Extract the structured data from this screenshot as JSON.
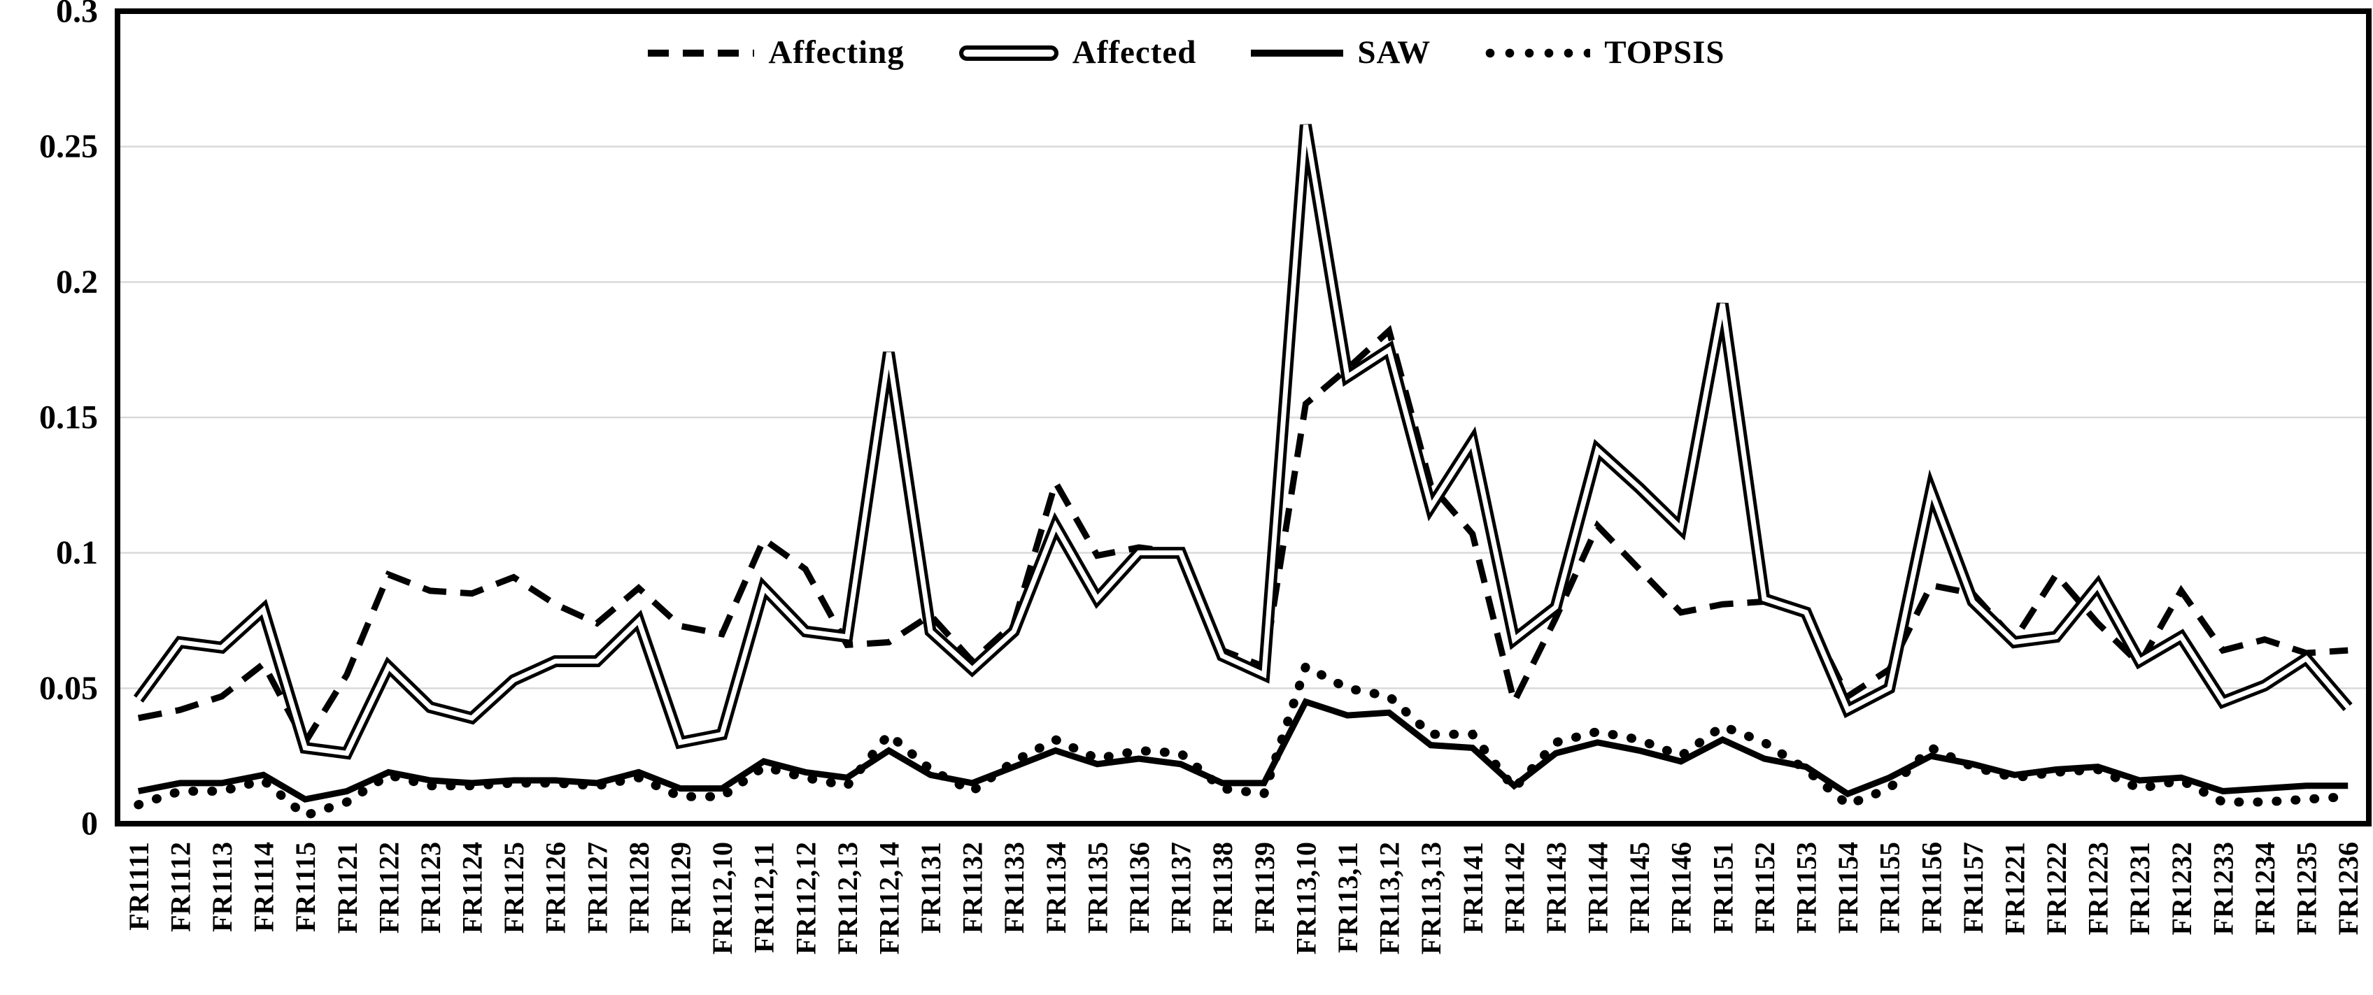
{
  "colors": {
    "line": "#000000",
    "grid": "#d9d9d9",
    "background": "#ffffff",
    "frame": "#000000"
  },
  "chart_data": {
    "type": "line",
    "title": "",
    "xlabel": "",
    "ylabel": "",
    "grid": "horizontal",
    "legend_position": "top-center",
    "ylim": [
      0,
      0.3
    ],
    "yticks": [
      0,
      0.05,
      0.1,
      0.15,
      0.2,
      0.25,
      0.3
    ],
    "ytick_labels": [
      "0",
      "0.05",
      "0.1",
      "0.15",
      "0.2",
      "0.25",
      "0.3"
    ],
    "categories": [
      "FR1111",
      "FR1112",
      "FR1113",
      "FR1114",
      "FR1115",
      "FR1121",
      "FR1122",
      "FR1123",
      "FR1124",
      "FR1125",
      "FR1126",
      "FR1127",
      "FR1128",
      "FR1129",
      "FR112,10",
      "FR112,11",
      "FR112,12",
      "FR112,13",
      "FR112,14",
      "FR1131",
      "FR1132",
      "FR1133",
      "FR1134",
      "FR1135",
      "FR1136",
      "FR1137",
      "FR1138",
      "FR1139",
      "FR113,10",
      "FR113,11",
      "FR113,12",
      "FR113,13",
      "FR1141",
      "FR1142",
      "FR1143",
      "FR1144",
      "FR1145",
      "FR1146",
      "FR1151",
      "FR1152",
      "FR1153",
      "FR1154",
      "FR1155",
      "FR1156",
      "FR1157",
      "FR1221",
      "FR1222",
      "FR1223",
      "FR1231",
      "FR1232",
      "FR1233",
      "FR1234",
      "FR1235",
      "FR1236"
    ],
    "series": [
      {
        "name": "Affecting",
        "style": "dashed",
        "values": [
          0.039,
          0.042,
          0.047,
          0.059,
          0.03,
          0.055,
          0.092,
          0.086,
          0.085,
          0.091,
          0.081,
          0.074,
          0.087,
          0.073,
          0.07,
          0.105,
          0.094,
          0.066,
          0.067,
          0.077,
          0.06,
          0.074,
          0.126,
          0.099,
          0.102,
          0.1,
          0.064,
          0.058,
          0.155,
          0.168,
          0.182,
          0.125,
          0.107,
          0.045,
          0.076,
          0.11,
          0.094,
          0.078,
          0.081,
          0.082,
          0.078,
          0.047,
          0.057,
          0.088,
          0.085,
          0.068,
          0.092,
          0.074,
          0.059,
          0.086,
          0.064,
          0.068,
          0.063,
          0.064
        ]
      },
      {
        "name": "Affected",
        "style": "double",
        "values": [
          0.046,
          0.067,
          0.065,
          0.079,
          0.028,
          0.026,
          0.058,
          0.043,
          0.039,
          0.053,
          0.06,
          0.06,
          0.075,
          0.03,
          0.033,
          0.087,
          0.071,
          0.069,
          0.174,
          0.071,
          0.057,
          0.071,
          0.11,
          0.083,
          0.1,
          0.1,
          0.062,
          0.055,
          0.258,
          0.165,
          0.175,
          0.117,
          0.141,
          0.068,
          0.08,
          0.138,
          0.124,
          0.109,
          0.192,
          0.083,
          0.078,
          0.042,
          0.05,
          0.123,
          0.082,
          0.067,
          0.069,
          0.088,
          0.06,
          0.069,
          0.045,
          0.051,
          0.061,
          0.043
        ]
      },
      {
        "name": "SAW",
        "style": "solid",
        "values": [
          0.012,
          0.015,
          0.015,
          0.018,
          0.009,
          0.012,
          0.019,
          0.016,
          0.015,
          0.016,
          0.016,
          0.015,
          0.019,
          0.013,
          0.013,
          0.023,
          0.019,
          0.017,
          0.027,
          0.018,
          0.015,
          0.021,
          0.027,
          0.022,
          0.024,
          0.022,
          0.015,
          0.015,
          0.045,
          0.04,
          0.041,
          0.029,
          0.028,
          0.014,
          0.026,
          0.03,
          0.027,
          0.023,
          0.031,
          0.024,
          0.021,
          0.011,
          0.017,
          0.025,
          0.022,
          0.018,
          0.02,
          0.021,
          0.016,
          0.017,
          0.012,
          0.013,
          0.014,
          0.014
        ]
      },
      {
        "name": "TOPSIS",
        "style": "dotted",
        "values": [
          0.007,
          0.012,
          0.012,
          0.016,
          0.003,
          0.008,
          0.018,
          0.014,
          0.014,
          0.015,
          0.015,
          0.014,
          0.017,
          0.01,
          0.01,
          0.021,
          0.017,
          0.014,
          0.033,
          0.02,
          0.012,
          0.023,
          0.031,
          0.024,
          0.027,
          0.026,
          0.013,
          0.011,
          0.058,
          0.05,
          0.047,
          0.033,
          0.033,
          0.013,
          0.03,
          0.034,
          0.031,
          0.025,
          0.036,
          0.03,
          0.02,
          0.007,
          0.013,
          0.028,
          0.021,
          0.017,
          0.019,
          0.02,
          0.013,
          0.016,
          0.008,
          0.008,
          0.009,
          0.01
        ]
      }
    ]
  },
  "legend": {
    "items": [
      {
        "label": "Affecting"
      },
      {
        "label": "Affected"
      },
      {
        "label": "SAW"
      },
      {
        "label": "TOPSIS"
      }
    ]
  }
}
